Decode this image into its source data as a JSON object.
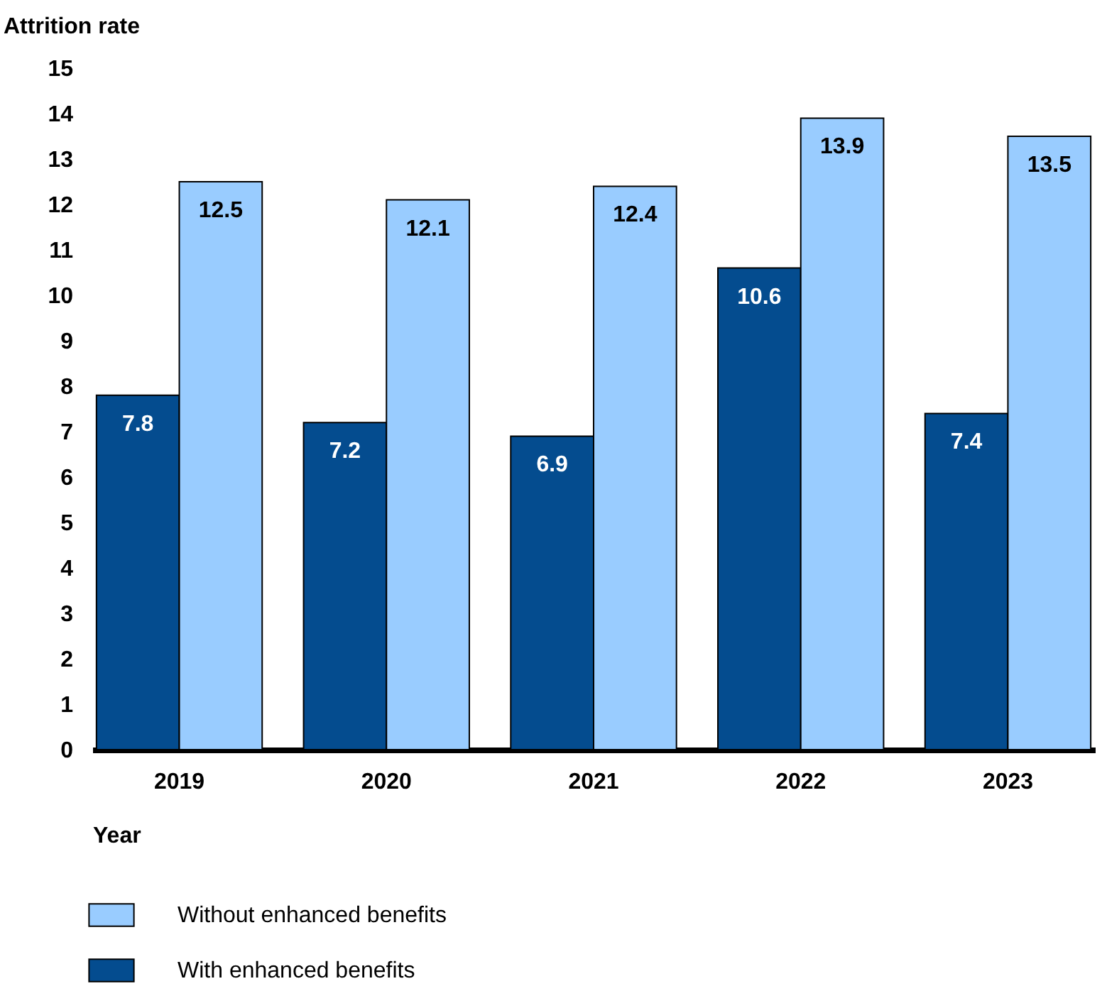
{
  "chart_data": {
    "type": "bar",
    "ylabel": "Attrition rate",
    "xlabel": "Year",
    "categories": [
      "2019",
      "2020",
      "2021",
      "2022",
      "2023"
    ],
    "series": [
      {
        "name": "With enhanced benefits",
        "color": "#044c8f",
        "values": [
          7.8,
          7.2,
          6.9,
          10.6,
          7.4
        ]
      },
      {
        "name": "Without enhanced benefits",
        "color": "#99ccff",
        "values": [
          12.5,
          12.1,
          12.4,
          13.9,
          13.5
        ]
      }
    ],
    "ylim": [
      0,
      15
    ],
    "yticks": [
      0,
      1,
      2,
      3,
      4,
      5,
      6,
      7,
      8,
      9,
      10,
      11,
      12,
      13,
      14,
      15
    ],
    "grid": false,
    "legend": "bottom",
    "data_labels": true
  }
}
